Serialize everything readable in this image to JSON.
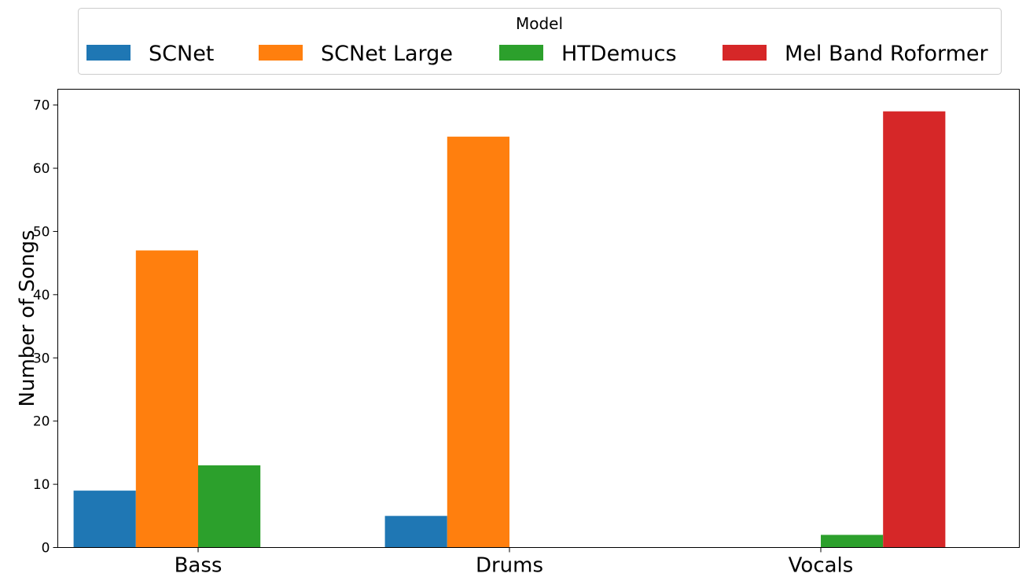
{
  "chart_data": {
    "type": "bar",
    "categories": [
      "Bass",
      "Drums",
      "Vocals"
    ],
    "series": [
      {
        "name": "SCNet",
        "color": "#1f77b4",
        "values": [
          9,
          5,
          0
        ]
      },
      {
        "name": "SCNet Large",
        "color": "#ff7f0e",
        "values": [
          47,
          65,
          0
        ]
      },
      {
        "name": "HTDemucs",
        "color": "#2ca02c",
        "values": [
          13,
          0,
          2
        ]
      },
      {
        "name": "Mel Band Roformer",
        "color": "#d62728",
        "values": [
          0,
          0,
          69
        ]
      }
    ],
    "title": "",
    "xlabel": "",
    "ylabel": "Number of Songs",
    "ylim": [
      0,
      72.5
    ],
    "yticks": [
      0,
      10,
      20,
      30,
      40,
      50,
      60,
      70
    ],
    "grid": false,
    "legend": {
      "title": "Model",
      "placement": "top-center, above plot"
    }
  }
}
